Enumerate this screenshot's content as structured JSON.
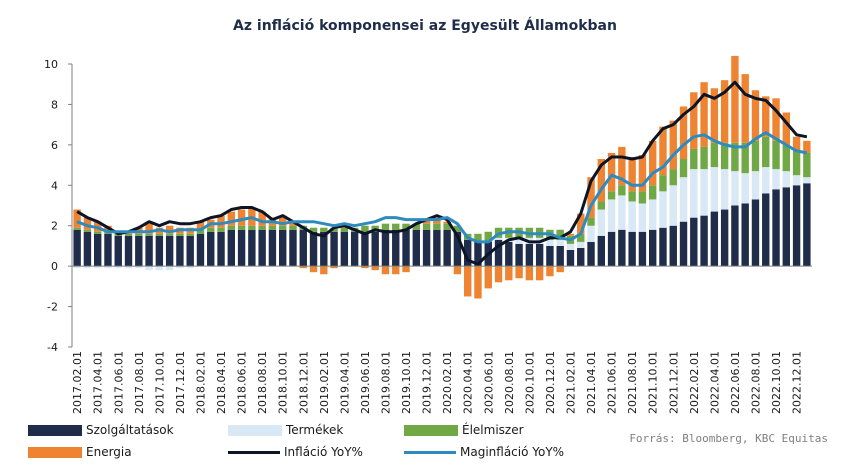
{
  "chart_data": {
    "type": "bar",
    "title": "Az infláció komponensei az Egyesült Államokban",
    "xlabel": "",
    "ylabel": "",
    "ylim": [
      -4,
      10
    ],
    "yticks": [
      -4,
      -2,
      0,
      2,
      4,
      6,
      8,
      10
    ],
    "grid": false,
    "legend_position": "bottom",
    "stacked": true,
    "categories": [
      "2017.02.01",
      "2017.03.01",
      "2017.04.01",
      "2017.05.01",
      "2017.06.01",
      "2017.07.01",
      "2017.08.01",
      "2017.09.01",
      "2017.10.01",
      "2017.11.01",
      "2017.12.01",
      "2018.01.01",
      "2018.02.01",
      "2018.03.01",
      "2018.04.01",
      "2018.05.01",
      "2018.06.01",
      "2018.07.01",
      "2018.08.01",
      "2018.09.01",
      "2018.10.01",
      "2018.11.01",
      "2018.12.01",
      "2019.01.01",
      "2019.02.01",
      "2019.03.01",
      "2019.04.01",
      "2019.05.01",
      "2019.06.01",
      "2019.07.01",
      "2019.08.01",
      "2019.09.01",
      "2019.10.01",
      "2019.11.01",
      "2019.12.01",
      "2020.01.01",
      "2020.02.01",
      "2020.03.01",
      "2020.04.01",
      "2020.05.01",
      "2020.06.01",
      "2020.07.01",
      "2020.08.01",
      "2020.09.01",
      "2020.10.01",
      "2020.11.01",
      "2020.12.01",
      "2021.01.01",
      "2021.02.01",
      "2021.03.01",
      "2021.04.01",
      "2021.05.01",
      "2021.06.01",
      "2021.07.01",
      "2021.08.01",
      "2021.09.01",
      "2021.10.01",
      "2021.11.01",
      "2021.12.01",
      "2022.01.01",
      "2022.02.01",
      "2022.03.01",
      "2022.04.01",
      "2022.05.01",
      "2022.06.01",
      "2022.07.01",
      "2022.08.01",
      "2022.09.01",
      "2022.10.01",
      "2022.11.01",
      "2022.12.01",
      "2023.01.01"
    ],
    "x_tick_labels": [
      "2017.02.01",
      "2017.04.01",
      "2017.06.01",
      "2017.08.01",
      "2017.10.01",
      "2017.12.01",
      "2018.02.01",
      "2018.04.01",
      "2018.06.01",
      "2018.08.01",
      "2018.10.01",
      "2018.12.01",
      "2019.02.01",
      "2019.04.01",
      "2019.06.01",
      "2019.08.01",
      "2019.10.01",
      "2019.12.01",
      "2020.02.01",
      "2020.04.01",
      "2020.06.01",
      "2020.08.01",
      "2020.10.01",
      "2020.12.01",
      "2021.02.01",
      "2021.04.01",
      "2021.06.01",
      "2021.08.01",
      "2021.10.01",
      "2021.12.01",
      "2022.02.01",
      "2022.04.01",
      "2022.06.01",
      "2022.08.01",
      "2022.10.01",
      "2022.12.01"
    ],
    "series": [
      {
        "name": "Szolgáltatások",
        "kind": "bar",
        "color": "#1f2d4a",
        "values": [
          1.8,
          1.7,
          1.6,
          1.6,
          1.5,
          1.5,
          1.5,
          1.5,
          1.5,
          1.5,
          1.5,
          1.5,
          1.6,
          1.7,
          1.7,
          1.8,
          1.8,
          1.8,
          1.8,
          1.8,
          1.8,
          1.8,
          1.8,
          1.7,
          1.7,
          1.7,
          1.7,
          1.7,
          1.7,
          1.7,
          1.8,
          1.8,
          1.8,
          1.8,
          1.8,
          1.8,
          1.8,
          1.7,
          1.3,
          1.2,
          1.2,
          1.3,
          1.2,
          1.1,
          1.1,
          1.1,
          1.0,
          1.0,
          0.8,
          0.9,
          1.2,
          1.5,
          1.7,
          1.8,
          1.7,
          1.7,
          1.8,
          1.9,
          2.0,
          2.2,
          2.4,
          2.5,
          2.7,
          2.8,
          3.0,
          3.1,
          3.3,
          3.6,
          3.8,
          3.9,
          4.0,
          4.1
        ]
      },
      {
        "name": "Termékek",
        "kind": "bar",
        "color": "#d9e8f5",
        "values": [
          -0.1,
          -0.1,
          -0.1,
          -0.1,
          -0.1,
          -0.1,
          -0.1,
          -0.2,
          -0.2,
          -0.2,
          -0.1,
          -0.1,
          0.0,
          0.0,
          0.0,
          0.0,
          0.0,
          0.0,
          0.0,
          0.0,
          0.0,
          0.0,
          0.0,
          0.0,
          0.0,
          0.0,
          0.0,
          0.0,
          0.0,
          0.0,
          0.0,
          0.0,
          0.0,
          0.0,
          0.0,
          0.0,
          0.0,
          0.0,
          0.0,
          0.0,
          0.0,
          0.1,
          0.2,
          0.3,
          0.3,
          0.3,
          0.3,
          0.3,
          0.3,
          0.3,
          0.8,
          1.3,
          1.6,
          1.7,
          1.5,
          1.4,
          1.5,
          1.8,
          2.0,
          2.2,
          2.4,
          2.3,
          2.2,
          2.0,
          1.7,
          1.5,
          1.4,
          1.3,
          1.0,
          0.8,
          0.5,
          0.3
        ]
      },
      {
        "name": "Élelmiszer",
        "kind": "bar",
        "color": "#70a845",
        "values": [
          0.1,
          0.1,
          0.1,
          0.1,
          0.1,
          0.1,
          0.1,
          0.1,
          0.1,
          0.1,
          0.1,
          0.1,
          0.2,
          0.2,
          0.2,
          0.2,
          0.2,
          0.2,
          0.2,
          0.2,
          0.2,
          0.2,
          0.2,
          0.2,
          0.2,
          0.2,
          0.2,
          0.2,
          0.3,
          0.3,
          0.3,
          0.3,
          0.3,
          0.3,
          0.3,
          0.3,
          0.3,
          0.3,
          0.3,
          0.4,
          0.5,
          0.5,
          0.5,
          0.5,
          0.5,
          0.5,
          0.5,
          0.5,
          0.4,
          0.4,
          0.4,
          0.4,
          0.4,
          0.5,
          0.5,
          0.6,
          0.7,
          0.8,
          0.8,
          0.9,
          1.0,
          1.1,
          1.2,
          1.3,
          1.4,
          1.5,
          1.5,
          1.5,
          1.4,
          1.3,
          1.2,
          1.2
        ]
      },
      {
        "name": "Energia",
        "kind": "bar",
        "color": "#ee8431",
        "values": [
          0.9,
          0.6,
          0.5,
          0.3,
          0.1,
          0.1,
          0.3,
          0.5,
          0.3,
          0.4,
          0.3,
          0.3,
          0.4,
          0.4,
          0.6,
          0.7,
          0.8,
          0.9,
          0.7,
          0.4,
          0.5,
          0.2,
          -0.1,
          -0.3,
          -0.4,
          -0.1,
          0.1,
          0.0,
          -0.1,
          -0.2,
          -0.4,
          -0.4,
          -0.3,
          0.0,
          0.2,
          0.3,
          0.1,
          -0.4,
          -1.5,
          -1.6,
          -1.1,
          -0.8,
          -0.7,
          -0.6,
          -0.7,
          -0.7,
          -0.5,
          -0.3,
          0.1,
          1.0,
          2.0,
          2.1,
          1.9,
          1.9,
          1.7,
          1.8,
          2.2,
          2.4,
          2.4,
          2.6,
          2.8,
          3.2,
          2.7,
          3.1,
          4.3,
          3.4,
          2.5,
          2.0,
          2.1,
          1.6,
          0.7,
          0.6
        ]
      },
      {
        "name": "Infláció YoY%",
        "kind": "line",
        "color": "#0d1426",
        "values": [
          2.7,
          2.4,
          2.2,
          1.9,
          1.6,
          1.7,
          1.9,
          2.2,
          2.0,
          2.2,
          2.1,
          2.1,
          2.2,
          2.4,
          2.5,
          2.8,
          2.9,
          2.9,
          2.7,
          2.3,
          2.5,
          2.2,
          1.9,
          1.6,
          1.5,
          1.9,
          2.0,
          1.8,
          1.6,
          1.8,
          1.7,
          1.7,
          1.8,
          2.1,
          2.3,
          2.5,
          2.3,
          1.5,
          0.3,
          0.1,
          0.6,
          1.0,
          1.3,
          1.4,
          1.2,
          1.2,
          1.4,
          1.4,
          1.7,
          2.6,
          4.2,
          5.0,
          5.4,
          5.4,
          5.3,
          5.4,
          6.2,
          6.8,
          7.0,
          7.5,
          7.9,
          8.5,
          8.3,
          8.6,
          9.1,
          8.5,
          8.3,
          8.2,
          7.7,
          7.1,
          6.5,
          6.4
        ]
      },
      {
        "name": "Maginfláció YoY%",
        "kind": "line",
        "color": "#2e8bc0",
        "values": [
          2.2,
          2.0,
          1.9,
          1.7,
          1.7,
          1.7,
          1.7,
          1.7,
          1.8,
          1.7,
          1.8,
          1.8,
          1.8,
          2.1,
          2.1,
          2.2,
          2.3,
          2.4,
          2.2,
          2.2,
          2.1,
          2.2,
          2.2,
          2.2,
          2.1,
          2.0,
          2.1,
          2.0,
          2.1,
          2.2,
          2.4,
          2.4,
          2.3,
          2.3,
          2.3,
          2.3,
          2.4,
          2.1,
          1.4,
          1.2,
          1.2,
          1.6,
          1.7,
          1.7,
          1.6,
          1.6,
          1.6,
          1.4,
          1.3,
          1.6,
          3.0,
          3.8,
          4.5,
          4.3,
          4.0,
          4.0,
          4.6,
          4.9,
          5.5,
          6.0,
          6.4,
          6.5,
          6.2,
          6.0,
          5.9,
          5.9,
          6.3,
          6.6,
          6.3,
          6.0,
          5.7,
          5.6
        ]
      }
    ]
  },
  "legend": {
    "items": [
      {
        "label": "Szolgáltatások",
        "type": "box",
        "color": "#1f2d4a"
      },
      {
        "label": "Termékek",
        "type": "box",
        "color": "#d9e8f5"
      },
      {
        "label": "Élelmiszer",
        "type": "box",
        "color": "#70a845"
      },
      {
        "label": "Energia",
        "type": "box",
        "color": "#ee8431"
      },
      {
        "label": "Infláció YoY%",
        "type": "line",
        "color": "#0d1426"
      },
      {
        "label": "Maginfláció YoY%",
        "type": "line",
        "color": "#2e8bc0"
      }
    ]
  },
  "source_note": "Forrás: Bloomberg, KBC Equitas"
}
